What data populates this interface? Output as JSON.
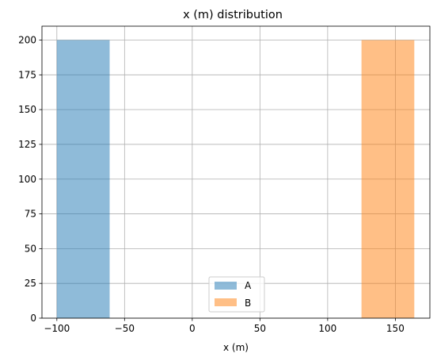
{
  "chart_data": {
    "type": "histogram",
    "title": "x (m) distribution",
    "xlabel": "x (m)",
    "ylabel": "",
    "xlim": [
      -111,
      175.5
    ],
    "ylim": [
      0,
      210
    ],
    "xticks": [
      -100,
      -50,
      0,
      50,
      100,
      150
    ],
    "yticks": [
      0,
      25,
      50,
      75,
      100,
      125,
      150,
      175,
      200
    ],
    "xtick_labels": [
      "−100",
      "−50",
      "0",
      "50",
      "100",
      "150"
    ],
    "ytick_labels": [
      "0",
      "25",
      "50",
      "75",
      "100",
      "125",
      "150",
      "175",
      "200"
    ],
    "grid": true,
    "legend_position": "bottom-center",
    "series": [
      {
        "name": "A",
        "color": "#1f77b4",
        "alpha": 0.5,
        "bins": [
          {
            "x0": -100,
            "x1": -61,
            "count": 200
          }
        ]
      },
      {
        "name": "B",
        "color": "#ff7f0e",
        "alpha": 0.5,
        "bins": [
          {
            "x0": 125,
            "x1": 164,
            "count": 200
          }
        ]
      }
    ]
  }
}
